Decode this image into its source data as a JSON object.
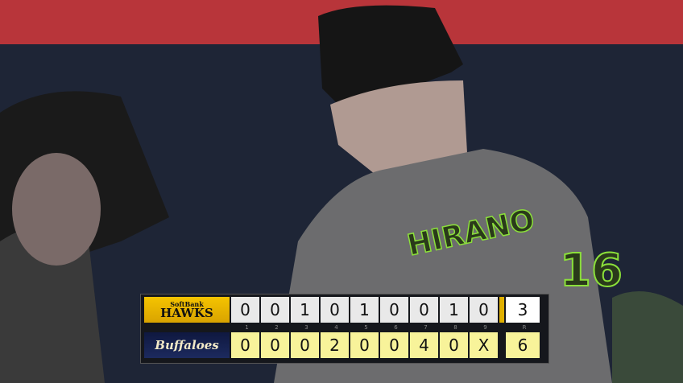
{
  "scoreboard": {
    "away": {
      "name": "SoftBank HAWKS",
      "brand_line1": "SoftBank",
      "brand_line2": "HAWKS",
      "innings": [
        "0",
        "0",
        "1",
        "0",
        "1",
        "0",
        "0",
        "1",
        "0"
      ],
      "runs": "3",
      "color": "#f5c400"
    },
    "home": {
      "name": "Buffaloes",
      "innings": [
        "0",
        "0",
        "0",
        "2",
        "0",
        "0",
        "4",
        "0",
        "X"
      ],
      "runs": "6",
      "color": "#0f1840"
    },
    "inning_labels": [
      "1",
      "2",
      "3",
      "4",
      "5",
      "6",
      "7",
      "8",
      "9"
    ],
    "runs_label": "R"
  },
  "scene": {
    "jersey_name": "HIRANO",
    "jersey_number": "16"
  }
}
